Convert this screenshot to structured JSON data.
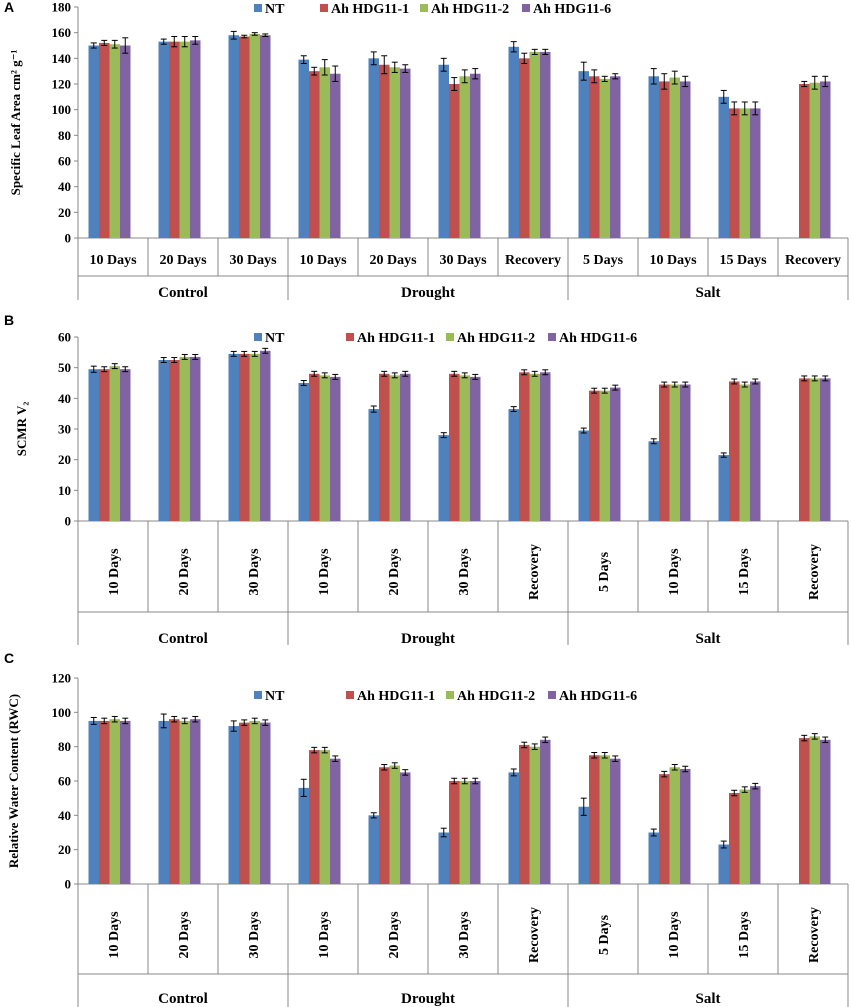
{
  "chart_data": [
    {
      "panel_label": "A",
      "type": "bar",
      "ylabel": "Specific Leaf Area cm² g⁻¹",
      "ylim": [
        0,
        180
      ],
      "yticks": [
        0,
        20,
        40,
        60,
        80,
        100,
        120,
        140,
        160,
        180
      ],
      "categories": [
        "10 Days",
        "20 Days",
        "30 Days",
        "10 Days",
        "20 Days",
        "30 Days",
        "Recovery",
        "5 Days",
        "10 Days",
        "15 Days",
        "Recovery"
      ],
      "groups": [
        {
          "name": "Control",
          "span": [
            0,
            2
          ]
        },
        {
          "name": "Drought",
          "span": [
            3,
            6
          ]
        },
        {
          "name": "Salt",
          "span": [
            7,
            10
          ]
        }
      ],
      "series": [
        {
          "name": "NT",
          "color": "#4F81BD",
          "values": [
            150,
            153,
            158,
            139,
            140,
            135,
            149,
            130,
            126,
            110,
            null
          ],
          "errors": [
            2,
            2,
            3,
            3,
            5,
            5,
            4,
            7,
            6,
            5,
            null
          ]
        },
        {
          "name": "Ah HDG11-1",
          "color": "#C0504D",
          "values": [
            152,
            153,
            157,
            130,
            135,
            120,
            140,
            126,
            122,
            101,
            120
          ],
          "errors": [
            2,
            4,
            1,
            3,
            7,
            5,
            4,
            5,
            6,
            5,
            2
          ]
        },
        {
          "name": "Ah HDG11-2",
          "color": "#9BBB59",
          "values": [
            151,
            153,
            159,
            133,
            133,
            126,
            145,
            124,
            125,
            101,
            121
          ],
          "errors": [
            3,
            4,
            1,
            6,
            4,
            5,
            2,
            2,
            5,
            5,
            5
          ]
        },
        {
          "name": "Ah HDG11-6",
          "color": "#8064A2",
          "values": [
            150,
            154,
            158,
            128,
            132,
            128,
            145,
            126,
            122,
            101,
            122
          ],
          "errors": [
            6,
            3,
            1,
            6,
            3,
            4,
            2,
            2,
            4,
            5,
            4
          ]
        }
      ]
    },
    {
      "panel_label": "B",
      "type": "bar",
      "ylabel": "SCMR V₂",
      "ylim": [
        0,
        60
      ],
      "yticks": [
        0,
        10,
        20,
        30,
        40,
        50,
        60
      ],
      "categories": [
        "10 Days",
        "20 Days",
        "30 Days",
        "10 Days",
        "20 Days",
        "30 Days",
        "Recovery",
        "5 Days",
        "10 Days",
        "15 Days",
        "Recovery"
      ],
      "groups": [
        {
          "name": "Control",
          "span": [
            0,
            2
          ]
        },
        {
          "name": "Drought",
          "span": [
            3,
            6
          ]
        },
        {
          "name": "Salt",
          "span": [
            7,
            10
          ]
        }
      ],
      "series": [
        {
          "name": "NT",
          "color": "#4F81BD",
          "values": [
            49.5,
            52.5,
            54.5,
            45,
            36.5,
            28,
            36.5,
            29.5,
            26,
            21.5,
            null
          ],
          "errors": [
            1,
            0.8,
            0.8,
            0.8,
            1,
            0.8,
            0.8,
            0.8,
            0.8,
            0.7,
            null
          ]
        },
        {
          "name": "Ah HDG11-1",
          "color": "#C0504D",
          "values": [
            49.5,
            52.5,
            54.5,
            48,
            48,
            48,
            48.5,
            42.5,
            44.5,
            45.5,
            46.5
          ]
        },
        {
          "name": "Ah HDG11-2",
          "color": "#9BBB59",
          "values": [
            50.5,
            53.5,
            54.5,
            47.5,
            47.5,
            47.5,
            48,
            42.5,
            44.5,
            44.5,
            46.5
          ]
        },
        {
          "name": "Ah HDG11-6",
          "color": "#8064A2",
          "values": [
            49.5,
            53.5,
            55.5,
            47,
            48,
            47,
            48.5,
            43.5,
            44.5,
            45.5,
            46.5
          ]
        }
      ]
    },
    {
      "panel_label": "C",
      "type": "bar",
      "ylabel": "Relative Water Content (RWC)",
      "ylim": [
        0,
        120
      ],
      "yticks": [
        0,
        20,
        40,
        60,
        80,
        100,
        120
      ],
      "categories": [
        "10 Days",
        "20 Days",
        "30 Days",
        "10 Days",
        "20 Days",
        "30 Days",
        "Recovery",
        "5 Days",
        "10 Days",
        "15 Days",
        "Recovery"
      ],
      "groups": [
        {
          "name": "Control",
          "span": [
            0,
            2
          ]
        },
        {
          "name": "Drought",
          "span": [
            3,
            6
          ]
        },
        {
          "name": "Salt",
          "span": [
            7,
            10
          ]
        }
      ],
      "series": [
        {
          "name": "NT",
          "color": "#4F81BD",
          "values": [
            95,
            95,
            92,
            56,
            40,
            30,
            65,
            45,
            30,
            23,
            null
          ],
          "errors": [
            2,
            4,
            3,
            5,
            1.5,
            2.5,
            2,
            5,
            2,
            2,
            null
          ]
        },
        {
          "name": "Ah HDG11-1",
          "color": "#C0504D",
          "values": [
            95,
            96,
            94,
            78,
            68,
            60,
            81,
            75,
            64,
            53,
            85
          ]
        },
        {
          "name": "Ah HDG11-2",
          "color": "#9BBB59",
          "values": [
            96,
            95,
            95,
            78,
            69,
            60,
            80,
            75,
            68,
            55,
            86
          ]
        },
        {
          "name": "Ah HDG11-6",
          "color": "#8064A2",
          "values": [
            95,
            96,
            94,
            73,
            65,
            60,
            84,
            73,
            67,
            57,
            84
          ]
        }
      ]
    }
  ]
}
